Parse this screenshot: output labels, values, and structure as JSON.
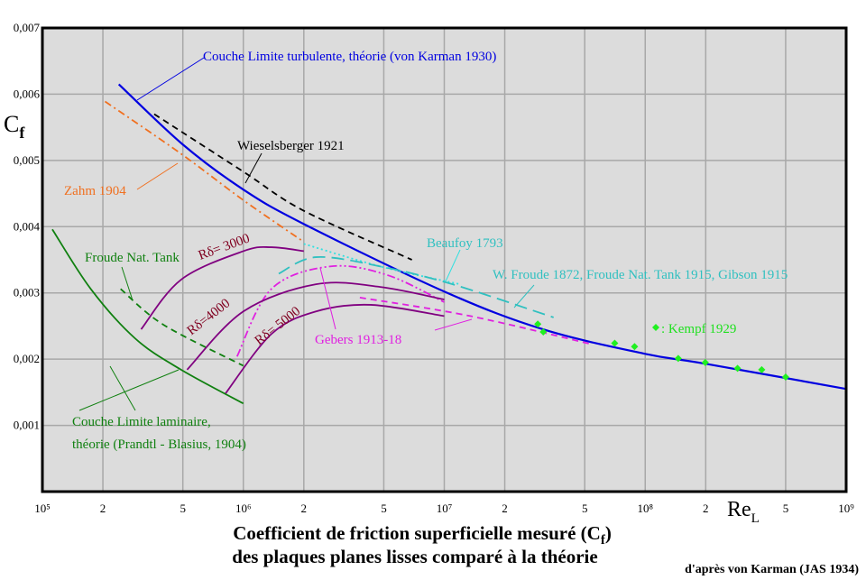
{
  "chart_data": {
    "type": "line",
    "x_scale": "log",
    "xlim": [
      100000,
      1000000000
    ],
    "ylim": [
      0,
      0.007
    ],
    "grid": true,
    "background": "#dcdcdc",
    "xticks": [
      {
        "v": 100000,
        "label": "10⁵"
      },
      {
        "v": 200000,
        "label": "2"
      },
      {
        "v": 500000,
        "label": "5"
      },
      {
        "v": 1000000,
        "label": "10⁶"
      },
      {
        "v": 2000000,
        "label": "2"
      },
      {
        "v": 5000000,
        "label": "5"
      },
      {
        "v": 10000000,
        "label": "10⁷"
      },
      {
        "v": 20000000,
        "label": "2"
      },
      {
        "v": 50000000,
        "label": "5"
      },
      {
        "v": 100000000,
        "label": "10⁸"
      },
      {
        "v": 200000000,
        "label": "2"
      },
      {
        "v": 500000000,
        "label": "5"
      },
      {
        "v": 1000000000,
        "label": "10⁹"
      }
    ],
    "yticks": [
      {
        "v": 0.001,
        "label": "0,001"
      },
      {
        "v": 0.002,
        "label": "0,002"
      },
      {
        "v": 0.003,
        "label": "0,003"
      },
      {
        "v": 0.004,
        "label": "0,004"
      },
      {
        "v": 0.005,
        "label": "0,005"
      },
      {
        "v": 0.006,
        "label": "0,006"
      },
      {
        "v": 0.007,
        "label": "0,007"
      }
    ],
    "ylabel": {
      "main": "C",
      "sub": "f"
    },
    "xlabel": {
      "main": "Re",
      "sub": "L"
    },
    "title": {
      "line1_main": "Coefficient de friction superficielle mesuré (C",
      "line1_sub": "f",
      "line1_end": ")",
      "line2": "des plaques planes lisses comparé à la théorie"
    },
    "credit": "d'après von Karman (JAS 1934)",
    "series": [
      {
        "id": "turbulent",
        "name": "Couche Limite turbulente, théorie (von Karman 1930)",
        "color": "#0000e0",
        "style": "solid",
        "x": [
          240000,
          500000,
          1000000,
          2000000,
          10000000,
          31000000,
          100000000,
          200000000,
          1000000000
        ],
        "y": [
          0.00615,
          0.00524,
          0.00456,
          0.00404,
          0.00302,
          0.00245,
          0.00208,
          0.00193,
          0.00155
        ]
      },
      {
        "id": "wieselsberger",
        "name": "Wieselsberger 1921",
        "color": "#000000",
        "style": "dash",
        "x": [
          360000,
          1000000,
          2000000,
          6900000
        ],
        "y": [
          0.0057,
          0.00483,
          0.00424,
          0.0035
        ]
      },
      {
        "id": "zahm",
        "name": "Zahm 1904",
        "color": "#f07020",
        "style": "dashdot",
        "x": [
          205000,
          490000,
          1000000,
          2000000
        ],
        "y": [
          0.00589,
          0.0051,
          0.0044,
          0.00377
        ]
      },
      {
        "id": "beaufoy",
        "name": "Beaufoy 1793",
        "color": "#30e0e0",
        "style": "dot",
        "x": [
          2000000,
          4800000,
          12000000
        ],
        "y": [
          0.00374,
          0.0034,
          0.00313
        ]
      },
      {
        "id": "wfroude",
        "name": "W. Froude 1872, Froude Nat. Tank 1915, Gibson 1915",
        "color": "#30c0c0",
        "style": "longdash",
        "x": [
          1500000,
          2300000,
          4800000,
          11000000,
          35000000
        ],
        "y": [
          0.00329,
          0.00354,
          0.0034,
          0.00313,
          0.00263
        ]
      },
      {
        "id": "gebers1",
        "name": "Gebers 1913-18",
        "color": "#e020e0",
        "style": "dashdotdot",
        "x": [
          930000,
          1380000,
          2700000,
          5200000,
          10000000
        ],
        "y": [
          0.00204,
          0.00306,
          0.0034,
          0.00327,
          0.00286
        ]
      },
      {
        "id": "gebers2",
        "name": "Gebers 1913-18",
        "color": "#e020e0",
        "style": "dash",
        "x": [
          3800000,
          13500000,
          55000000
        ],
        "y": [
          0.00293,
          0.00265,
          0.00222
        ]
      },
      {
        "id": "r3000",
        "name": "Rδ= 3000",
        "color": "#800080",
        "style": "solid",
        "x": [
          310000,
          490000,
          1000000,
          1380000,
          2000000
        ],
        "y": [
          0.00245,
          0.0032,
          0.00363,
          0.00369,
          0.00363
        ]
      },
      {
        "id": "r4000",
        "name": "Rδ=4000",
        "color": "#800080",
        "style": "solid",
        "x": [
          525000,
          1000000,
          2300000,
          4800000,
          10000000
        ],
        "y": [
          0.00184,
          0.00272,
          0.00313,
          0.00309,
          0.0029
        ]
      },
      {
        "id": "r5000",
        "name": "Rδ= 5000",
        "color": "#800080",
        "style": "solid",
        "x": [
          810000,
          1380000,
          2300000,
          4300000,
          10000000
        ],
        "y": [
          0.00147,
          0.00238,
          0.00272,
          0.00282,
          0.00265
        ]
      },
      {
        "id": "froudetank",
        "name": "Froude Nat. Tank",
        "color": "#108010",
        "style": "dash",
        "x": [
          245000,
          400000,
          1000000
        ],
        "y": [
          0.00306,
          0.00252,
          0.0019
        ]
      },
      {
        "id": "laminar",
        "name": "Couche Limite laminaire, théorie (Prandtl - Blasius, 1904)",
        "color": "#108010",
        "style": "solid",
        "x": [
          112000,
          174000,
          290000,
          490000,
          1000000
        ],
        "y": [
          0.00396,
          0.00306,
          0.00231,
          0.00184,
          0.00133
        ]
      }
    ],
    "points": {
      "name": "Kempf 1929",
      "marker": "diamond",
      "color": "#20f020",
      "x": [
        29200000,
        31100000,
        70500000,
        88500000,
        146000000,
        199000000,
        288000000,
        380000000,
        500000000
      ],
      "y": [
        0.00253,
        0.00241,
        0.00224,
        0.00219,
        0.00201,
        0.00195,
        0.00186,
        0.00184,
        0.00173
      ]
    },
    "annotations": {
      "turbulent": "Couche Limite turbulente, théorie (von Karman 1930)",
      "wieselsberger": "Wieselsberger 1921",
      "zahm": "Zahm 1904",
      "beaufoy": "Beaufoy 1793",
      "wfroude": "W. Froude 1872, Froude Nat. Tank 1915, Gibson 1915",
      "gebers": "Gebers 1913-18",
      "kempf": ": Kempf 1929",
      "froudetank": "Froude Nat. Tank",
      "laminar1": "Couche Limite laminaire,",
      "laminar2": "théorie (Prandtl - Blasius, 1904)",
      "r3000": "Rδ= 3000",
      "r4000": "Rδ=4000",
      "r5000": "Rδ= 5000"
    }
  }
}
